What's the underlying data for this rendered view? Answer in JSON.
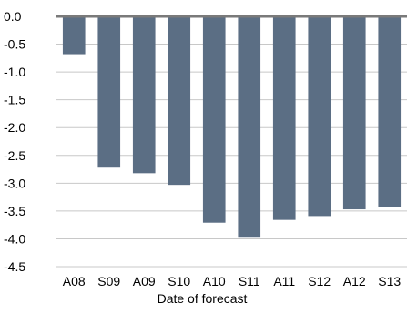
{
  "chart_data": {
    "type": "bar",
    "categories": [
      "A08",
      "S09",
      "A09",
      "S10",
      "A10",
      "S11",
      "A11",
      "S12",
      "A12",
      "S13"
    ],
    "values": [
      -0.68,
      -2.72,
      -2.82,
      -3.03,
      -3.71,
      -3.98,
      -3.66,
      -3.59,
      -3.47,
      -3.42
    ],
    "title": "",
    "xlabel": "Date of forecast",
    "ylabel": "",
    "ylim": [
      -4.5,
      0.0
    ],
    "yticks": [
      "0.0",
      "-0.5",
      "-1.0",
      "-1.5",
      "-2.0",
      "-2.5",
      "-3.0",
      "-3.5",
      "-4.0",
      "-4.5"
    ],
    "grid": true,
    "legend": "none",
    "bar_color": "#5b6e84",
    "zero_line_color": "#7a7a7a",
    "grid_color": "#c8c8c8"
  }
}
